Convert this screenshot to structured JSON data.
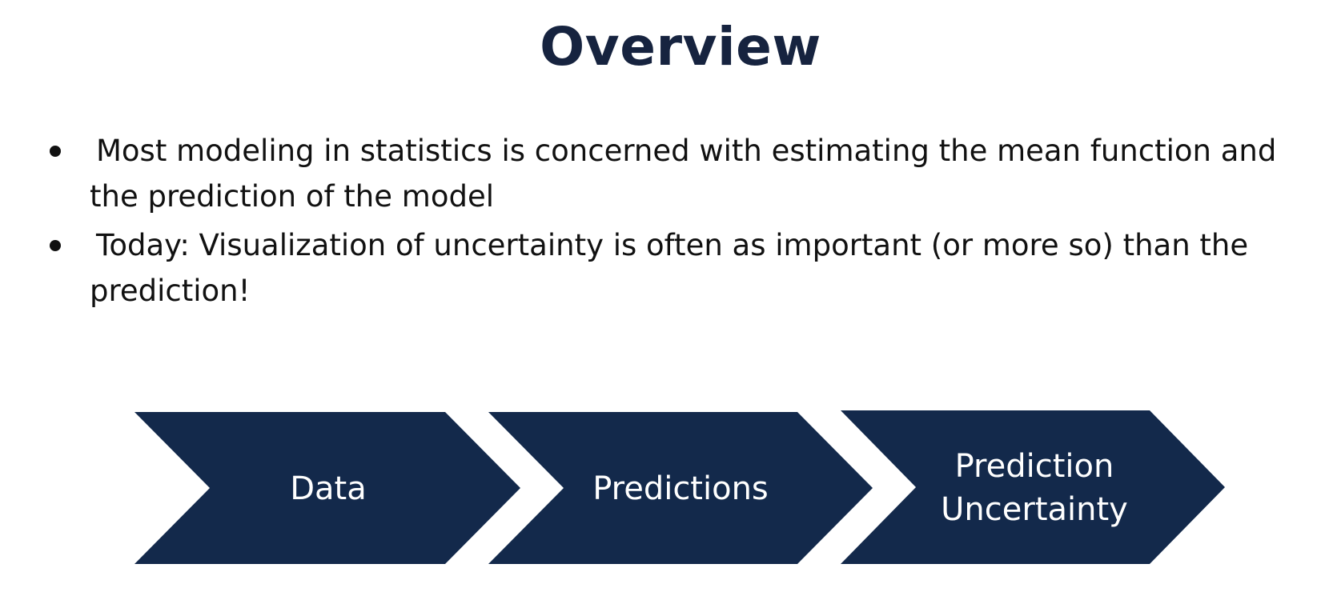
{
  "slide": {
    "title": "Overview",
    "bullets": [
      "Most modeling in statistics is concerned with estimating the mean function and the prediction of the model",
      "Today: Visualization of uncertainty is often as important (or more so) than the prediction!"
    ],
    "process_steps": [
      {
        "line1": "Data",
        "line2": ""
      },
      {
        "line1": "Predictions",
        "line2": ""
      },
      {
        "line1": "Prediction",
        "line2": "Uncertainty"
      }
    ],
    "colors": {
      "chevron_fill": "#13294b",
      "title_color": "#16233f",
      "text_color": "#111111"
    }
  }
}
